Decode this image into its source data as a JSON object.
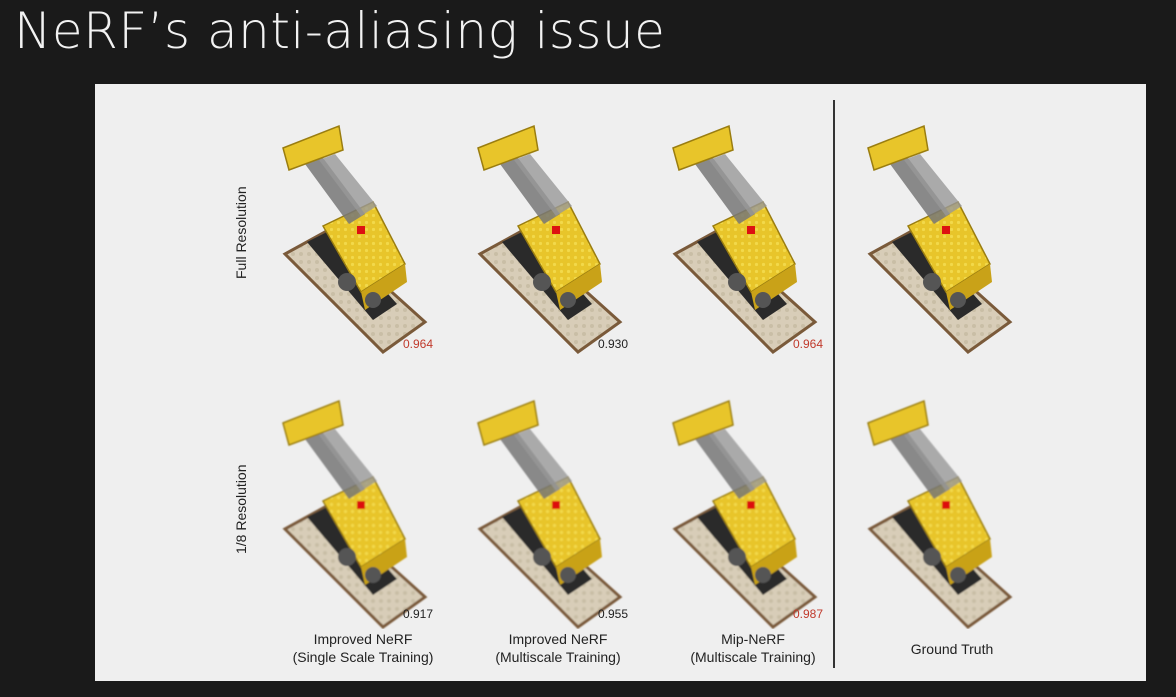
{
  "slide": {
    "title": "NeRF’s anti-aliasing issue"
  },
  "rows": [
    {
      "label": "Full Resolution"
    },
    {
      "label": "1/8 Resolution"
    }
  ],
  "columns": [
    {
      "line1": "Improved NeRF",
      "line2": "(Single Scale Training)"
    },
    {
      "line1": "Improved NeRF",
      "line2": "(Multiscale Training)"
    },
    {
      "line1": "Mip-NeRF",
      "line2": "(Multiscale Training)"
    },
    {
      "line1": "Ground Truth",
      "line2": ""
    }
  ],
  "scores": {
    "full": [
      "0.964",
      "0.930",
      "0.964"
    ],
    "eighth": [
      "0.917",
      "0.955",
      "0.987"
    ]
  },
  "colors": {
    "highlight": "#c0392b",
    "lego_yellow": "#e8c52a",
    "baseplate": "#d8cdb8",
    "baseplate_edge": "#7a5a3a"
  }
}
